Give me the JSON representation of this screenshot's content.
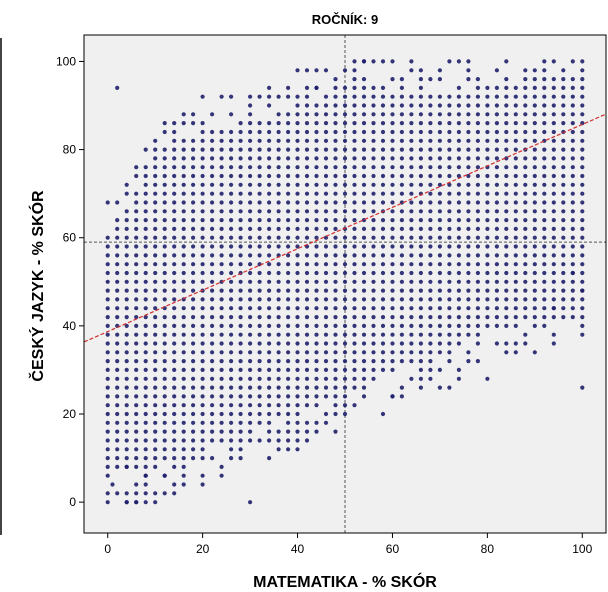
{
  "chart_data": {
    "type": "scatter",
    "title": "ROČNÍK: 9",
    "xlabel": "MATEMATIKA - % SKÓR",
    "ylabel": "ČESKÝ JAZYK - % SKÓR",
    "xlim": [
      -5,
      105
    ],
    "ylim": [
      -7,
      106
    ],
    "xticks": [
      0,
      20,
      40,
      60,
      80,
      100
    ],
    "yticks": [
      0,
      20,
      40,
      60,
      80,
      100
    ],
    "xtick_labels": [
      "0",
      "20",
      "40",
      "60",
      "80",
      "100"
    ],
    "ytick_labels": [
      "0",
      "20",
      "40",
      "60",
      "80",
      "100"
    ],
    "grid": false,
    "grid_step": 2,
    "reference_lines": {
      "x_mean": 50,
      "y_mean": 59
    },
    "fit_line": {
      "slope": 0.47,
      "intercept": 38.7
    },
    "point_density": {
      "x_bins": [
        0,
        10,
        20,
        30,
        40,
        50,
        60,
        70,
        80,
        90,
        100
      ],
      "y_min_by_x": [
        0,
        2,
        6,
        10,
        14,
        18,
        24,
        28,
        34,
        36,
        40
      ],
      "y_max_by_x": [
        66,
        84,
        90,
        92,
        96,
        98,
        98,
        98,
        100,
        100,
        100
      ]
    },
    "sparse_points": [
      {
        "x": 0,
        "y": 0
      },
      {
        "x": 1,
        "y": 4
      },
      {
        "x": 2,
        "y": 2
      },
      {
        "x": 2,
        "y": 94
      },
      {
        "x": 4,
        "y": 0
      },
      {
        "x": 4,
        "y": 8
      },
      {
        "x": 6,
        "y": 0
      },
      {
        "x": 8,
        "y": 6
      },
      {
        "x": 12,
        "y": 6
      },
      {
        "x": 30,
        "y": 0
      },
      {
        "x": 40,
        "y": 98
      },
      {
        "x": 44,
        "y": 94
      },
      {
        "x": 54,
        "y": 100
      },
      {
        "x": 58,
        "y": 20
      },
      {
        "x": 60,
        "y": 24
      },
      {
        "x": 72,
        "y": 26
      },
      {
        "x": 74,
        "y": 28
      },
      {
        "x": 80,
        "y": 28
      },
      {
        "x": 94,
        "y": 44
      },
      {
        "x": 98,
        "y": 52
      },
      {
        "x": 100,
        "y": 26
      },
      {
        "x": 100,
        "y": 48
      }
    ],
    "colors": {
      "points": "#1f1f6b",
      "plot_background": "#f0f0f0",
      "fit_line": "#d22e2e",
      "reference_lines": "#555555",
      "axis": "#000000"
    }
  }
}
